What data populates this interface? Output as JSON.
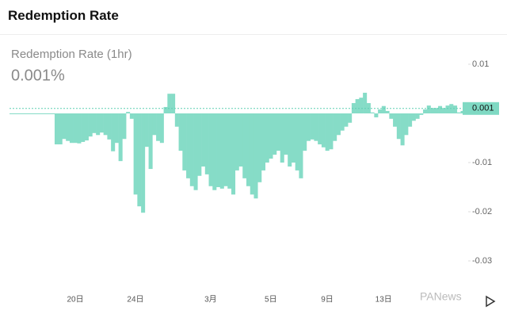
{
  "header": {
    "title": "Redemption Rate"
  },
  "chart_data": {
    "type": "bar",
    "title": "Redemption Rate (1hr)",
    "headline_value": "0.001%",
    "current_value": 0.001,
    "watermark": "PANews",
    "color": "#86dcc7",
    "categories": [
      null,
      null,
      null,
      null,
      null,
      null,
      null,
      null,
      null,
      null,
      null,
      null,
      null,
      null,
      null,
      null,
      null,
      "20日",
      null,
      null,
      null,
      null,
      null,
      null,
      null,
      null,
      null,
      null,
      null,
      null,
      null,
      null,
      null,
      "24日",
      null,
      null,
      null,
      null,
      null,
      null,
      null,
      null,
      null,
      null,
      null,
      null,
      null,
      null,
      null,
      null,
      null,
      null,
      null,
      "3月",
      null,
      null,
      null,
      null,
      null,
      null,
      null,
      null,
      null,
      null,
      null,
      null,
      null,
      null,
      null,
      "5日",
      null,
      null,
      null,
      null,
      null,
      null,
      null,
      null,
      null,
      null,
      null,
      null,
      null,
      null,
      "9日",
      null,
      null,
      null,
      null,
      null,
      null,
      null,
      null,
      null,
      null,
      null,
      null,
      null,
      null,
      "13日",
      null,
      null,
      null,
      null,
      null,
      null,
      null,
      null,
      null,
      null,
      null,
      null,
      null,
      null,
      null,
      null,
      null,
      null,
      null,
      null,
      null,
      null
    ],
    "values": [
      -0.0001,
      -0.0001,
      -0.0001,
      -0.0001,
      -0.0001,
      -0.0001,
      -0.0001,
      -0.0001,
      -0.0001,
      -0.0001,
      -0.0001,
      -0.0001,
      -0.0063,
      -0.0063,
      -0.0052,
      -0.0056,
      -0.006,
      -0.006,
      -0.0061,
      -0.0058,
      -0.0055,
      -0.0047,
      -0.004,
      -0.0044,
      -0.0039,
      -0.0044,
      -0.0053,
      -0.0077,
      -0.006,
      -0.0097,
      -0.0052,
      0.0003,
      -0.0011,
      -0.0165,
      -0.0189,
      -0.0202,
      -0.0068,
      -0.0113,
      -0.0044,
      -0.0056,
      -0.006,
      0.0013,
      0.004,
      0.004,
      -0.0027,
      -0.0076,
      -0.0116,
      -0.0132,
      -0.0148,
      -0.0156,
      -0.0127,
      -0.0108,
      -0.0124,
      -0.0148,
      -0.0156,
      -0.015,
      -0.0153,
      -0.0148,
      -0.0153,
      -0.0165,
      -0.0116,
      -0.0108,
      -0.0132,
      -0.0148,
      -0.0165,
      -0.0173,
      -0.014,
      -0.0116,
      -0.01,
      -0.0092,
      -0.0084,
      -0.0076,
      -0.01,
      -0.0084,
      -0.0108,
      -0.01,
      -0.0116,
      -0.0132,
      -0.0076,
      -0.0056,
      -0.0053,
      -0.0056,
      -0.0063,
      -0.0069,
      -0.0076,
      -0.0073,
      -0.0056,
      -0.0044,
      -0.0035,
      -0.0027,
      -0.0019,
      0.0021,
      0.0029,
      0.0032,
      0.0042,
      0.0021,
      0.0002,
      -0.0008,
      0.0008,
      0.0015,
      0.0005,
      -0.0011,
      -0.0027,
      -0.0052,
      -0.0065,
      -0.0044,
      -0.0027,
      -0.0015,
      -0.0011,
      -0.0003,
      0.0008,
      0.0016,
      0.0011,
      0.0011,
      0.0015,
      0.0011,
      0.0016,
      0.0019,
      0.0016,
      0.0002,
      0.0005,
      0.001
    ],
    "ylim": [
      -0.03,
      0.01
    ],
    "yticks": [
      0.01,
      -0.01,
      -0.02,
      -0.03
    ]
  }
}
